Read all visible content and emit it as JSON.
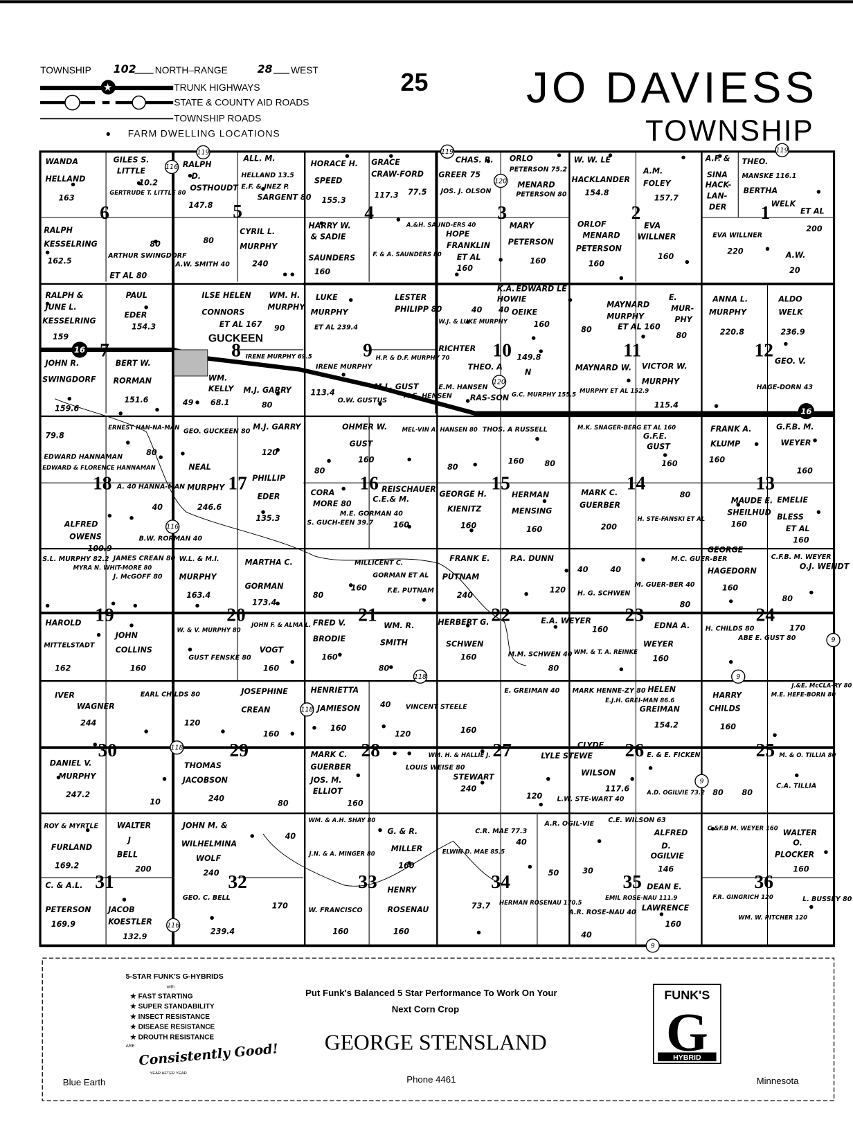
{
  "header": {
    "township_label": "TOWNSHIP",
    "township_number": "102",
    "north_range_label": "NORTH–RANGE",
    "range_number": "28",
    "west_label": "WEST",
    "page_number": "25",
    "title": "JO DAVIESS",
    "subtitle": "TOWNSHIP"
  },
  "legend": {
    "trunk": "TRUNK HIGHWAYS",
    "aid": "STATE & COUNTY AID ROADS",
    "township_roads": "TOWNSHIP ROADS",
    "dwellings": "FARM DWELLING LOCATIONS"
  },
  "map": {
    "town_name": "GUCKEEN",
    "section_numbers": [
      "6",
      "5",
      "4",
      "3",
      "2",
      "1",
      "7",
      "8",
      "9",
      "10",
      "11",
      "12",
      "18",
      "17",
      "16",
      "15",
      "14",
      "13",
      "19",
      "20",
      "21",
      "22",
      "23",
      "24",
      "30",
      "29",
      "28",
      "27",
      "26",
      "25",
      "31",
      "32",
      "33",
      "34",
      "35",
      "36"
    ],
    "route_markers": [
      "119",
      "119",
      "119",
      "116",
      "116",
      "116",
      "120",
      "120",
      "118",
      "118",
      "118",
      "9",
      "9",
      "9",
      "9"
    ],
    "trunk_markers": [
      "16",
      "16"
    ],
    "owner_labels": [
      "WANDA",
      "HELLAND",
      "163",
      "GILES S.",
      "LITTLE",
      "10.2",
      "GERTRUDE T. LITTLE 80",
      "RALPH",
      "D.",
      "OSTHOUDT",
      "147.8",
      "ALL. M.",
      "HELLAND 13.5",
      "E.F. & INEZ P.",
      "SARGENT 80",
      "HORACE H.",
      "SPEED",
      "155.3",
      "GRACE",
      "CRAW-FORD",
      "117.3",
      "77.5",
      "CHAS. R.",
      "GREER 75",
      "JOS. J. OLSON",
      "ORLO",
      "PETERSON 75.2",
      "MENARD",
      "PETERSON 80",
      "W. W. LE",
      "HACKLANDER",
      "154.8",
      "A.M.",
      "FOLEY",
      "157.7",
      "A.F. &",
      "SINA",
      "HACK-",
      "LAN-",
      "DER",
      "THEO.",
      "MANSKE 116.1",
      "BERTHA",
      "WELK",
      "ET AL",
      "200",
      "RALPH",
      "KESSELRING",
      "162.5",
      "80",
      "80",
      "ARTHUR SWINGDORF",
      "ET AL 80",
      "A.W. SMITH 40",
      "CYRIL L.",
      "MURPHY",
      "240",
      "HARRY W.",
      "& SADIE",
      "SAUNDERS",
      "160",
      "A.&H. SAUND-ERS 40",
      "F. & A. SAUNDERS 80",
      "HOPE",
      "FRANKLIN",
      "ET AL",
      "160",
      "MARY",
      "PETERSON",
      "160",
      "ORLOF",
      "MENARD",
      "PETERSON",
      "160",
      "EVA",
      "WILLNER",
      "160",
      "EVA WILLNER",
      "220",
      "A.W.",
      "20",
      "RALPH &",
      "JUNE L.",
      "KESSELRING",
      "159",
      "PAUL",
      "EDER",
      "154.3",
      "ILSE HELEN",
      "CONNORS",
      "ET AL 167",
      "WM. H.",
      "MURPHY",
      "90",
      "LUKE",
      "MURPHY",
      "ET AL 239.4",
      "LESTER",
      "PHILIPP 80",
      "W.J. & LUKE MURPHY",
      "40",
      "K.A.",
      "HOWIE",
      "40",
      "EDWARD LE",
      "OEIKE",
      "160",
      "MAYNARD",
      "MURPHY",
      "ET AL 160",
      "80",
      "E.",
      "MUR-",
      "PHY",
      "80",
      "ANNA L.",
      "MURPHY",
      "220.8",
      "ALDO",
      "WELK",
      "236.9",
      "JOHN R.",
      "SWINGDORF",
      "159.6",
      "BERT W.",
      "RORMAN",
      "151.6",
      "IRENE MURPHY 69.5",
      "WM.",
      "KELLY",
      "68.1",
      "49",
      "M.J. GARRY",
      "80",
      "IRENE MURPHY",
      "H.P. & D.F. MURPHY 70",
      "RICHTER",
      "THEO. A",
      "O.W. GUSTUS",
      "M.L. GUST",
      "M.E. HENSEN",
      "E.M. HANSEN",
      "RAS-SON",
      "113.4",
      "149.8",
      "N",
      "G.C. MURPHY 155.5",
      "MAYNARD W.",
      "MURPHY ET AL 152.9",
      "VICTOR W.",
      "MURPHY",
      "115.4",
      "GEO. V.",
      "HAGE-DORN 43",
      "79.8",
      "EDWARD HANNAMAN",
      "ERNEST HAN-NA-MAN",
      "80",
      "EDWARD & FLORENCE HANNAMAN",
      "A. 40 HANNA-MAN",
      "40",
      "ALFRED",
      "OWENS",
      "100.9",
      "B.W. RORMAN 40",
      "GEO. GUCKEEN 80",
      "NEAL",
      "MURPHY",
      "246.6",
      "M.J. GARRY",
      "120",
      "PHILLIP",
      "EDER",
      "135.3",
      "OHMER W.",
      "GUST",
      "160",
      "80",
      "MEL-VIN A. HANSEN 80",
      "80",
      "THOS. A RUSSELL",
      "160",
      "80",
      "M.K. SNAGER-BERG ET AL 160",
      "G.F.E.",
      "GUST",
      "160",
      "FRANK A.",
      "KLUMP",
      "160",
      "G.F.B. M.",
      "WEYER",
      "160",
      "CORA",
      "MORE 80",
      "S. GUCH-EEN 39.7",
      "M.E. GORMAN 40",
      "C.E.& M.",
      "REISCHAUER",
      "160",
      "GEORGE H.",
      "KIENITZ",
      "160",
      "HERMAN",
      "MENSING",
      "160",
      "MARK C.",
      "GUERBER",
      "200",
      "H. STE-FANSKI ET AL",
      "80",
      "MAUDE E.",
      "SHEILHUD",
      "160",
      "EMELIE",
      "BLESS",
      "ET AL",
      "160",
      "S.L. MURPHY 82.2",
      "MYRA N. WHIT-MORE 80",
      "JAMES CREAN 80",
      "J. McGOFF 80",
      "W.L. & M.I.",
      "MURPHY",
      "163.4",
      "MARTHA C.",
      "GORMAN",
      "173.4",
      "80",
      "MILLICENT C.",
      "GORMAN ET AL",
      "160",
      "F.E. PUTNAM",
      "FRANK E.",
      "PUTNAM",
      "240",
      "P.A. DUNN",
      "120",
      "40",
      "40",
      "H. G. SCHWEN",
      "M.C. GUER-BER",
      "M. GUER-BER 40",
      "80",
      "GEORGE",
      "HAGEDORN",
      "160",
      "C.F.B. M. WEYER",
      "O.J. WENDT",
      "80",
      "HAROLD",
      "MITTELSTADT",
      "162",
      "JOHN",
      "COLLINS",
      "160",
      "W. & V. MURPHY 80",
      "GUST FENSKE 80",
      "JOHN F. & ALMA L.",
      "VOGT",
      "160",
      "FRED V.",
      "BRODIE",
      "160",
      "WM. R.",
      "SMITH",
      "80",
      "HERBERT G.",
      "SCHWEN",
      "160",
      "E.A. WEYER",
      "M.M. SCHWEN 40",
      "80",
      "WM. & T. A. REINKE",
      "160",
      "EDNA A.",
      "WEYER",
      "160",
      "H. CHILDS 80",
      "ABE E. GUST 80",
      "170",
      "IVER",
      "WAGNER",
      "244",
      "EARL CHILDS 80",
      "120",
      "JOSEPHINE",
      "CREAN",
      "160",
      "HENRIETTA",
      "JAMIESON",
      "160",
      "40",
      "VINCENT STEELE",
      "120",
      "160",
      "E. GREIMAN 40",
      "MARK HENNE-ZY 80",
      "E.J.H. GREI-MAN 86.6",
      "HELEN",
      "GREIMAN",
      "154.2",
      "HARRY",
      "CHILDS",
      "160",
      "M.E. HEFE-BORN 80",
      "J.&E. McCLA-RY 80",
      "DANIEL V.",
      "MURPHY",
      "247.2",
      "10",
      "THOMAS",
      "JACOBSON",
      "240",
      "80",
      "MARK C.",
      "GUERBER",
      "JOS. M.",
      "ELLIOT",
      "160",
      "LOUIS WEISE 80",
      "WM. H. & HALLIE J.",
      "STEWART",
      "240",
      "LYLE STEWE",
      "120",
      "CLYDE",
      "WILSON",
      "117.6",
      "L.W. STE-WART 40",
      "E. & E. FICKEN",
      "A.D. OGILVIE 73.2",
      "80",
      "80",
      "M. & O. TILLIA 80",
      "C.A. TILLIA",
      "ROY & MYRTLE",
      "FURLAND",
      "169.2",
      "WALTER",
      "J",
      "BELL",
      "200",
      "C. & A.L.",
      "PETERSON",
      "169.9",
      "JACOB",
      "KOESTLER",
      "132.9",
      "JOHN M. &",
      "WILHELMINA",
      "WOLF",
      "240",
      "GEO. C. BELL",
      "239.4",
      "170",
      "40",
      "WM. & A.H. SHAY 80",
      "J.N. & A. MINGER 80",
      "W. FRANCISCO",
      "160",
      "G. & R.",
      "MILLER",
      "160",
      "HENRY",
      "ROSENAU",
      "160",
      "C.R. MAE 77.3",
      "ELWIN D. MAE 85.5",
      "HERMAN ROSENAU 170.5",
      "73.7",
      "40",
      "A.R. OGIL-VIE",
      "50",
      "30",
      "A.R. ROSE-NAU 40",
      "C.E. WILSON 63",
      "ALFRED",
      "D.",
      "OGILVIE",
      "146",
      "EMIL ROSE-NAU 111.9",
      "40",
      "DEAN E.",
      "LAWRENCE",
      "160",
      "C.&F.B M. WEYER 160",
      "WALTER",
      "O.",
      "PLOCKER",
      "160",
      "F.R. GINGRICH 120",
      "WM. W. PITCHER 120",
      "L. BUSSEY 80"
    ]
  },
  "ad": {
    "brand_heading": "5-STAR FUNK'S G-HYBRIDS",
    "with": "with",
    "features": [
      "★ FAST STARTING",
      "★ SUPER STANDABILITY",
      "★ INSECT RESISTANCE",
      "★ DISEASE RESISTANCE",
      "★ DROUTH RESISTANCE"
    ],
    "are": "ARE",
    "slogan": "Consistently Good!",
    "year_after_year": "YEAR AFTER YEAR",
    "tagline_1": "Put Funk's Balanced 5 Star Performance To Work On Your",
    "tagline_2": "Next Corn Crop",
    "dealer": "GEORGE STENSLAND",
    "city": "Blue Earth",
    "phone": "Phone 4461",
    "state": "Minnesota",
    "logo_top": "FUNK'S",
    "logo_letter": "G",
    "logo_bottom": "HYBRID"
  }
}
